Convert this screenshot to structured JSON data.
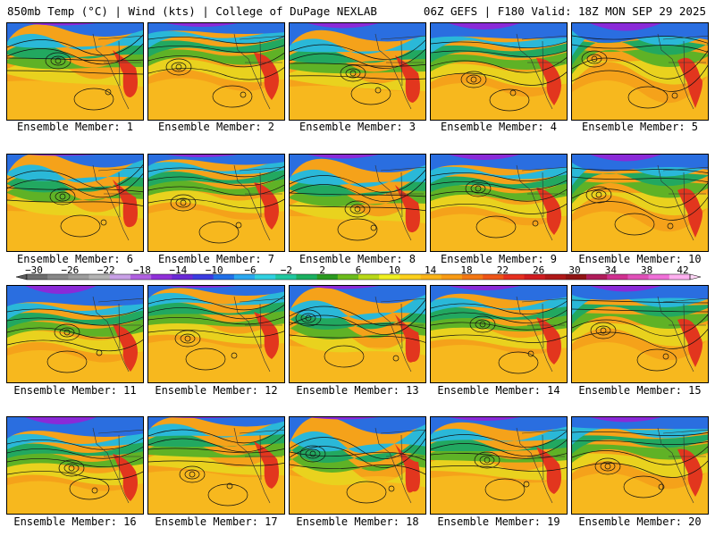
{
  "header": {
    "left_title": "850mb Temp (°C) | Wind (kts) | College of DuPage NEXLAB",
    "right_title": "06Z GEFS | F180 Valid: 18Z MON SEP 29 2025"
  },
  "members": [
    "Ensemble Member: 1",
    "Ensemble Member: 2",
    "Ensemble Member: 3",
    "Ensemble Member: 4",
    "Ensemble Member: 5",
    "Ensemble Member: 6",
    "Ensemble Member: 7",
    "Ensemble Member: 8",
    "Ensemble Member: 9",
    "Ensemble Member: 10",
    "Ensemble Member: 11",
    "Ensemble Member: 12",
    "Ensemble Member: 13",
    "Ensemble Member: 14",
    "Ensemble Member: 15",
    "Ensemble Member: 16",
    "Ensemble Member: 17",
    "Ensemble Member: 18",
    "Ensemble Member: 19",
    "Ensemble Member: 20"
  ],
  "colorbar": {
    "labels": [
      "−30",
      "−26",
      "−22",
      "−18",
      "−14",
      "−10",
      "−6",
      "−2",
      "2",
      "6",
      "10",
      "14",
      "18",
      "22",
      "26",
      "30",
      "34",
      "38",
      "42"
    ],
    "colors": [
      "#6e6e6e",
      "#888888",
      "#9c9c9c",
      "#b4b4b4",
      "#c8a0e6",
      "#b060e0",
      "#9030d8",
      "#6a2ad6",
      "#3c3ce0",
      "#2070e8",
      "#2aa8f0",
      "#30d0e0",
      "#20c8a0",
      "#1ab060",
      "#2a9a20",
      "#6cbc1c",
      "#b8d818",
      "#f0f020",
      "#fcd01c",
      "#fbb418",
      "#f89a14",
      "#f47814",
      "#ee5418",
      "#e63020",
      "#d01c20",
      "#b01818",
      "#901414",
      "#b01c5a",
      "#d03090",
      "#e050b8",
      "#f070d8",
      "#ffb0f0"
    ]
  }
}
